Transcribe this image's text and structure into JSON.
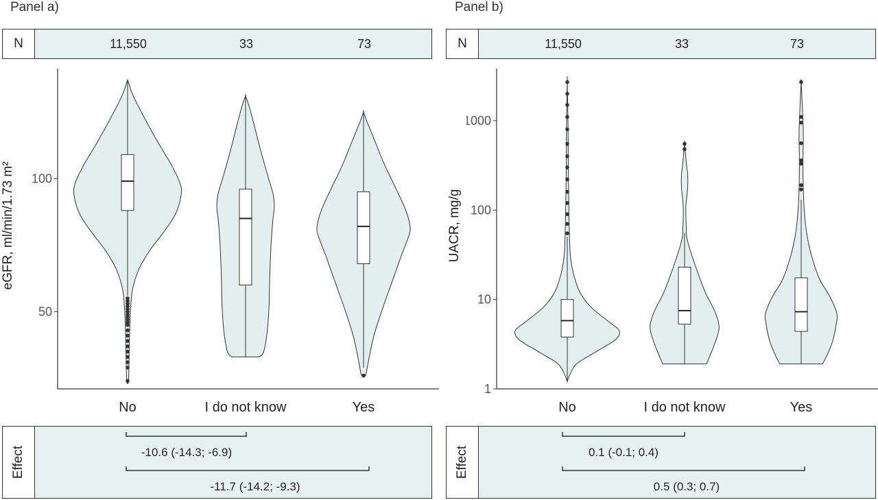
{
  "panels": [
    {
      "title": "Panel a)",
      "n_label": "N",
      "n_values": [
        "11,550",
        "33",
        "73"
      ],
      "effect_label": "Effect",
      "effects": [
        "-10.6 (-14.3; -6.9)",
        "-11.7 (-14.2; -9.3)"
      ]
    },
    {
      "title": "Panel b)",
      "n_label": "N",
      "n_values": [
        "11,550",
        "33",
        "73"
      ],
      "effect_label": "Effect",
      "effects": [
        "0.1 (-0.1; 0.4)",
        "0.5 (0.3; 0.7)"
      ]
    }
  ],
  "colors": {
    "violin_fill": "#e3efef",
    "stroke": "#333333",
    "panel_fill": "#e8f1f1"
  },
  "chart_data": [
    {
      "type": "violin",
      "ylabel": "eGFR, ml/min/1.73 m²",
      "categories": [
        "No",
        "I do not know",
        "Yes"
      ],
      "yscale": "linear",
      "ylim": [
        21,
        140
      ],
      "yticks": [
        50,
        100
      ],
      "grid": false,
      "groups": [
        {
          "name": "No",
          "min": 23,
          "max": 137,
          "q1": 88,
          "median": 99,
          "q3": 109,
          "whisker_low": 56,
          "whisker_high": 137,
          "outliers": [
            24,
            29,
            31,
            33,
            35,
            37,
            39,
            41,
            43,
            45,
            46,
            47,
            48,
            49,
            50,
            51,
            52,
            53,
            54,
            55
          ]
        },
        {
          "name": "I do not know",
          "min": 33,
          "max": 131,
          "q1": 60,
          "median": 85,
          "q3": 96,
          "whisker_low": 33,
          "whisker_high": 131,
          "outliers": []
        },
        {
          "name": "Yes",
          "min": 26,
          "max": 125,
          "q1": 68,
          "median": 82,
          "q3": 95,
          "whisker_low": 29,
          "whisker_high": 125,
          "outliers": [
            26
          ]
        }
      ]
    },
    {
      "type": "violin",
      "ylabel": "UACR, mg/g",
      "categories": [
        "No",
        "I do not know",
        "Yes"
      ],
      "yscale": "log",
      "ylim": [
        1,
        3500
      ],
      "yticks": [
        1,
        10,
        100,
        1000
      ],
      "grid": false,
      "groups": [
        {
          "name": "No",
          "min": 1.2,
          "max": 2700,
          "q1": 3.8,
          "median": 5.8,
          "q3": 10,
          "whisker_low": 1.2,
          "whisker_high": 50,
          "outliers": [
            55,
            70,
            90,
            120,
            160,
            220,
            300,
            400,
            550,
            800,
            1100,
            1500,
            2000,
            2700
          ]
        },
        {
          "name": "I do not know",
          "min": 1.9,
          "max": 550,
          "q1": 5.3,
          "median": 7.5,
          "q3": 23,
          "whisker_low": 1.9,
          "whisker_high": 55,
          "outliers": [
            480,
            550
          ]
        },
        {
          "name": "Yes",
          "min": 1.9,
          "max": 2700,
          "q1": 4.4,
          "median": 7.3,
          "q3": 17.5,
          "whisker_low": 1.9,
          "whisker_high": 130,
          "outliers": [
            170,
            190,
            330,
            360,
            560,
            950,
            1100,
            2700
          ]
        }
      ]
    }
  ]
}
